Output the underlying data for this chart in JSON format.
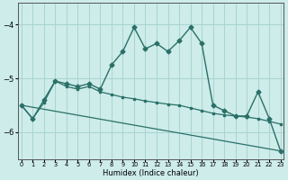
{
  "xlabel": "Humidex (Indice chaleur)",
  "bg_color": "#cdecea",
  "grid_color": "#a8d5d2",
  "line_color": "#2a7068",
  "xlim": [
    -0.3,
    23.3
  ],
  "ylim": [
    -6.5,
    -3.6
  ],
  "yticks": [
    -6,
    -5,
    -4
  ],
  "xticks": [
    0,
    1,
    2,
    3,
    4,
    5,
    6,
    7,
    8,
    9,
    10,
    11,
    12,
    13,
    14,
    15,
    16,
    17,
    18,
    19,
    20,
    21,
    22,
    23
  ],
  "line1_y": [
    -5.5,
    -5.75,
    -5.4,
    -5.05,
    -5.1,
    -5.15,
    -5.1,
    -5.2,
    -4.75,
    -4.5,
    -4.05,
    -4.45,
    -4.35,
    -4.5,
    -4.3,
    -4.05,
    -4.35,
    -5.5,
    -5.6,
    -5.7,
    -5.7,
    -5.25,
    -5.75,
    -6.35
  ],
  "line2_y": [
    -5.5,
    -5.75,
    -5.45,
    -5.05,
    -5.15,
    -5.2,
    -5.15,
    -5.25,
    -5.3,
    -5.35,
    -5.38,
    -5.42,
    -5.45,
    -5.48,
    -5.5,
    -5.55,
    -5.6,
    -5.65,
    -5.68,
    -5.7,
    -5.72,
    -5.75,
    -5.8,
    -5.85
  ],
  "trend_x": [
    0,
    23
  ],
  "trend_y": [
    -5.5,
    -6.35
  ]
}
